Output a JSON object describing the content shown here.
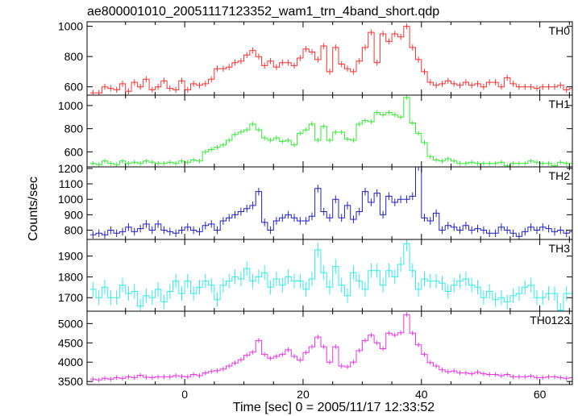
{
  "chart_data": {
    "type": "line",
    "title": "ae800001010_20051117123352_wam1_trn_4band_short.qdp",
    "xlabel": "Time [sec] 0 = 2005/11/17 12:33:52",
    "ylabel": "Counts/sec",
    "xlim": [
      -16.5,
      65.5
    ],
    "x_ticks": [
      0,
      20,
      40,
      60
    ],
    "x_tick_labels": [
      "0",
      "20",
      "40",
      "60"
    ],
    "time_bin_sec": 1.0,
    "x_start": -16,
    "panels": [
      {
        "name": "TH0",
        "color": "#ff3030",
        "ylim": [
          545,
          1030
        ],
        "y_ticks": [
          600,
          800,
          1000
        ],
        "y_tick_labels": [
          "600",
          "800",
          "1000"
        ],
        "error": 20,
        "values": [
          560,
          560,
          600,
          590,
          580,
          620,
          570,
          630,
          600,
          650,
          580,
          600,
          640,
          590,
          580,
          640,
          580,
          620,
          610,
          620,
          650,
          720,
          720,
          730,
          760,
          770,
          810,
          840,
          800,
          740,
          770,
          730,
          760,
          760,
          740,
          790,
          850,
          830,
          780,
          870,
          700,
          860,
          750,
          720,
          700,
          770,
          860,
          960,
          760,
          950,
          900,
          950,
          930,
          1000,
          860,
          780,
          700,
          630,
          610,
          620,
          640,
          620,
          610,
          630,
          610,
          620,
          600,
          630,
          630,
          600,
          660,
          620,
          600,
          600,
          600,
          590,
          600,
          600,
          600,
          610,
          580,
          590,
          590,
          600,
          590,
          590,
          600,
          590,
          590,
          600,
          580,
          600
        ]
      },
      {
        "name": "TH1",
        "color": "#30ee30",
        "ylim": [
          470,
          1090
        ],
        "y_ticks": [
          600,
          800,
          1000
        ],
        "y_tick_labels": [
          "600",
          "800",
          "1000"
        ],
        "error": 20,
        "values": [
          500,
          490,
          520,
          500,
          490,
          520,
          500,
          510,
          500,
          520,
          510,
          500,
          500,
          510,
          500,
          520,
          510,
          530,
          520,
          600,
          620,
          640,
          660,
          700,
          750,
          770,
          790,
          840,
          790,
          720,
          700,
          720,
          690,
          700,
          660,
          760,
          790,
          840,
          700,
          820,
          700,
          770,
          770,
          710,
          700,
          840,
          870,
          860,
          940,
          920,
          940,
          920,
          900,
          1070,
          850,
          760,
          680,
          560,
          530,
          520,
          540,
          520,
          500,
          500,
          510,
          500,
          500,
          500,
          500,
          510,
          480,
          500,
          500,
          500,
          520,
          510,
          500,
          500,
          480,
          510,
          500,
          500,
          500,
          510,
          490,
          480,
          500,
          480,
          510,
          500,
          500,
          500
        ]
      },
      {
        "name": "TH2",
        "color": "#2020c8",
        "ylim": [
          740,
          1210
        ],
        "y_ticks": [
          800,
          900,
          1000,
          1100,
          1200
        ],
        "y_tick_labels": [
          "800",
          "900",
          "1000",
          "1100",
          "1200"
        ],
        "error": 25,
        "values": [
          770,
          780,
          770,
          800,
          780,
          790,
          820,
          790,
          810,
          840,
          800,
          840,
          800,
          790,
          780,
          800,
          820,
          800,
          790,
          830,
          840,
          800,
          860,
          880,
          900,
          920,
          940,
          960,
          1050,
          850,
          800,
          860,
          880,
          900,
          880,
          860,
          860,
          890,
          1070,
          920,
          880,
          1000,
          880,
          960,
          870,
          920,
          1050,
          980,
          1040,
          900,
          1020,
          980,
          1000,
          1000,
          1020,
          1210,
          880,
          860,
          910,
          800,
          830,
          820,
          800,
          830,
          800,
          810,
          800,
          780,
          780,
          820,
          800,
          780,
          760,
          790,
          820,
          800,
          820,
          810,
          790,
          800,
          780,
          790,
          780,
          800,
          810,
          780,
          800,
          790,
          800,
          910,
          780,
          820
        ]
      },
      {
        "name": "TH3",
        "color": "#30ecec",
        "ylim": [
          1635,
          1980
        ],
        "y_ticks": [
          1700,
          1800,
          1900
        ],
        "y_tick_labels": [
          "1700",
          "1800",
          "1900"
        ],
        "error": 35,
        "values": [
          1740,
          1700,
          1750,
          1700,
          1700,
          1760,
          1720,
          1730,
          1660,
          1710,
          1700,
          1740,
          1680,
          1730,
          1780,
          1720,
          1780,
          1720,
          1750,
          1780,
          1760,
          1690,
          1760,
          1780,
          1800,
          1790,
          1840,
          1780,
          1800,
          1820,
          1750,
          1790,
          1760,
          1800,
          1780,
          1780,
          1740,
          1790,
          1930,
          1820,
          1750,
          1850,
          1760,
          1710,
          1820,
          1780,
          1740,
          1830,
          1830,
          1760,
          1830,
          1800,
          1860,
          1960,
          1830,
          1740,
          1790,
          1780,
          1780,
          1770,
          1730,
          1760,
          1780,
          1790,
          1760,
          1750,
          1700,
          1730,
          1690,
          1700,
          1680,
          1710,
          1720,
          1750,
          1760,
          1700,
          1700,
          1720,
          1720,
          1640,
          1720,
          1720,
          1710,
          1720,
          1700,
          1720,
          1710,
          1690,
          1730,
          1720,
          1690,
          1700
        ]
      },
      {
        "name": "TH0123",
        "color": "#ee30ee",
        "ylim": [
          3420,
          5320
        ],
        "y_ticks": [
          3500,
          4000,
          4500,
          5000
        ],
        "y_tick_labels": [
          "3500",
          "4000",
          "4500",
          "5000"
        ],
        "error": 60,
        "values": [
          3560,
          3540,
          3580,
          3560,
          3600,
          3580,
          3620,
          3600,
          3660,
          3610,
          3600,
          3620,
          3620,
          3620,
          3650,
          3630,
          3620,
          3680,
          3650,
          3720,
          3760,
          3780,
          3820,
          3900,
          3980,
          4060,
          4180,
          4260,
          4560,
          4200,
          4100,
          4150,
          4200,
          4320,
          4150,
          4050,
          4250,
          4400,
          4650,
          4400,
          4000,
          4400,
          3900,
          3880,
          4000,
          4300,
          4560,
          4700,
          4500,
          4350,
          4750,
          4700,
          4760,
          5230,
          4750,
          4450,
          4200,
          3990,
          3900,
          3800,
          3750,
          3770,
          3720,
          3720,
          3700,
          3740,
          3700,
          3680,
          3680,
          3650,
          3680,
          3620,
          3620,
          3620,
          3640,
          3600,
          3600,
          3620,
          3620,
          3600,
          3580,
          3600,
          3600,
          3580,
          3600,
          3580,
          3600,
          3560,
          3580,
          3580,
          3560,
          3560
        ]
      }
    ]
  }
}
